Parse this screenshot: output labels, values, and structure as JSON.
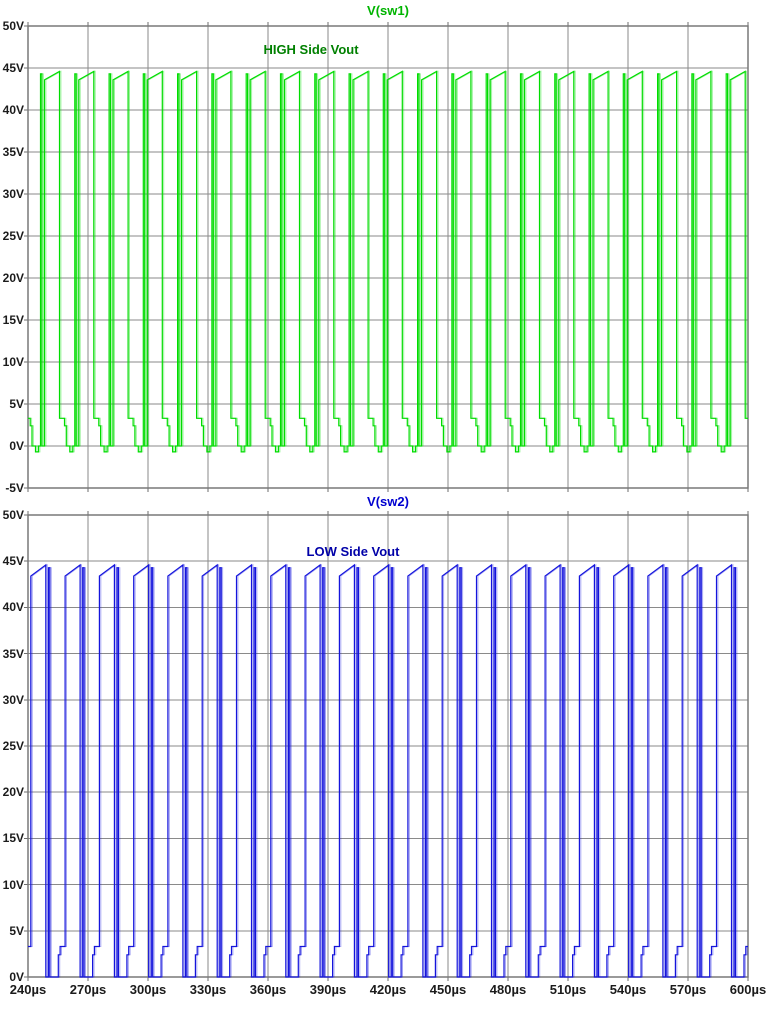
{
  "colors": {
    "background": "#ffffff",
    "grid": "#8a8a8a",
    "axis_text": "#1b1b1b",
    "sw1_trace": "#00dc00",
    "sw1_title": "#00b400",
    "sw1_label": "#008000",
    "sw2_trace": "#1414dc",
    "sw2_title": "#0000d0",
    "sw2_label": "#0000a8"
  },
  "x_axis": {
    "unit": "µs",
    "range_us": [
      240,
      600
    ],
    "tick_step_us": 30,
    "ticks": [
      "240µs",
      "270µs",
      "300µs",
      "330µs",
      "360µs",
      "390µs",
      "420µs",
      "450µs",
      "480µs",
      "510µs",
      "540µs",
      "570µs",
      "600µs"
    ]
  },
  "chart_data": [
    {
      "type": "line",
      "title": "V(sw1)",
      "annotation": "HIGH Side Vout",
      "series_name": "V(sw1)",
      "color_key": "sw1",
      "grid": true,
      "y_range_v": [
        -5,
        50
      ],
      "y_ticks": [
        "50V",
        "45V",
        "40V",
        "35V",
        "30V",
        "25V",
        "20V",
        "15V",
        "10V",
        "5V",
        "0V",
        "-5V"
      ],
      "x_range_us": [
        240,
        600
      ],
      "waveform": {
        "description": "half-bridge high-side switch-node pulse train, 0V to ~44.5V, ~58 kHz, narrow commutation spike before each wide pulse, 3.3V/2.4V diode shelf after falling edge, small -0.7V undershoot",
        "period_us": 17.143,
        "phase_us": 14.0,
        "cycles": 23,
        "high_v": 44.6,
        "low_v": 0,
        "shape_tv": [
          [
            0.0,
            0
          ],
          [
            0.6,
            0
          ],
          [
            0.6,
            -0.7
          ],
          [
            2.1,
            -0.7
          ],
          [
            2.1,
            0
          ],
          [
            3.1,
            0
          ],
          [
            3.1,
            44.3
          ],
          [
            3.8,
            44.3
          ],
          [
            3.8,
            0
          ],
          [
            5.1,
            0
          ],
          [
            5.1,
            43.6
          ],
          [
            12.6,
            44.6
          ],
          [
            12.6,
            3.3
          ],
          [
            15.1,
            3.3
          ],
          [
            15.1,
            2.4
          ],
          [
            16.0,
            2.4
          ],
          [
            16.0,
            0
          ],
          [
            17.143,
            0
          ]
        ]
      }
    },
    {
      "type": "line",
      "title": "V(sw2)",
      "annotation": "LOW Side Vout",
      "series_name": "V(sw2)",
      "color_key": "sw2",
      "grid": true,
      "y_range_v": [
        0,
        50
      ],
      "y_ticks": [
        "50V",
        "45V",
        "40V",
        "35V",
        "30V",
        "25V",
        "20V",
        "15V",
        "10V",
        "5V",
        "0V"
      ],
      "x_range_us": [
        240,
        600
      ],
      "waveform": {
        "description": "half-bridge low-side switch-node pulse train, 0V to ~44.5V, ~58 kHz, 2.4V/3.3V shelf before rising edge, ramped pulse top, narrow commutation spike after falling edge",
        "period_us": 17.143,
        "phase_us": 3.2,
        "cycles": 23,
        "high_v": 44.6,
        "low_v": 0,
        "shape_tv": [
          [
            0.0,
            0
          ],
          [
            1.2,
            0
          ],
          [
            1.2,
            2.4
          ],
          [
            2.1,
            2.4
          ],
          [
            2.1,
            3.3
          ],
          [
            4.6,
            3.3
          ],
          [
            4.6,
            43.4
          ],
          [
            12.1,
            44.6
          ],
          [
            12.1,
            0
          ],
          [
            13.4,
            0
          ],
          [
            13.4,
            44.3
          ],
          [
            14.1,
            44.3
          ],
          [
            14.1,
            0
          ],
          [
            17.143,
            0
          ]
        ]
      }
    }
  ]
}
